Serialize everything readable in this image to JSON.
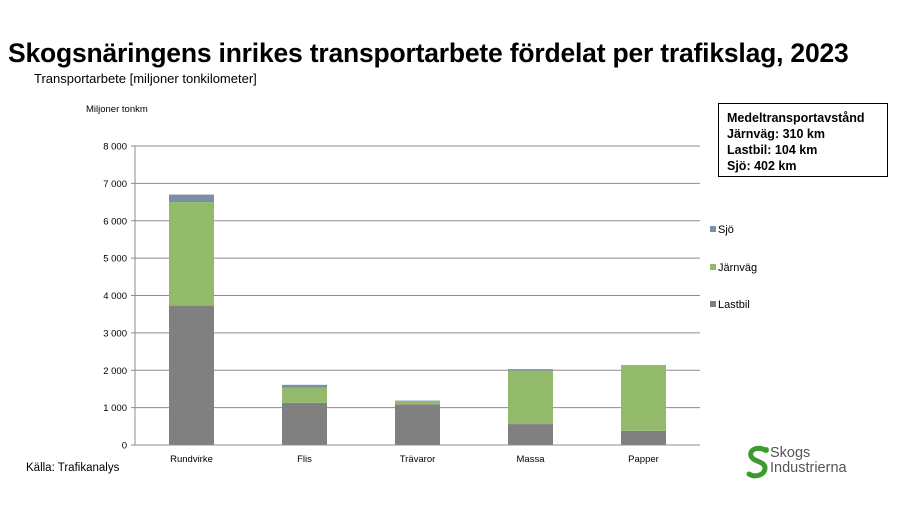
{
  "title": "Skogsnäringens inrikes transportarbete fördelat per trafikslag, 2023",
  "subtitle": "Transportarbete [miljoner tonkilometer]",
  "source": "Källa: Trafikanalys",
  "infobox": {
    "heading": "Medeltransportavstånd",
    "lines": [
      "Järnväg: 310 km",
      "Lastbil: 104 km",
      "Sjö: 402 km"
    ]
  },
  "logo": {
    "line1": "Skogs",
    "line2": "Industrierna",
    "icon": "s-swirl-logo-icon",
    "color": "#3c9a2e"
  },
  "chart_data": {
    "type": "bar",
    "stacked": true,
    "ylabel": "Miljoner tonkm",
    "ylim": [
      0,
      8000
    ],
    "yticks": [
      0,
      1000,
      2000,
      3000,
      4000,
      5000,
      6000,
      7000,
      8000
    ],
    "ytick_labels": [
      "0",
      "1 000",
      "2 000",
      "3 000",
      "4 000",
      "5 000",
      "6 000",
      "7 000",
      "8 000"
    ],
    "categories": [
      "Rundvirke",
      "Flis",
      "Trävaror",
      "Massa",
      "Papper"
    ],
    "series": [
      {
        "name": "Lastbil",
        "color": "#808080",
        "values": [
          3730,
          1130,
          1090,
          560,
          380
        ]
      },
      {
        "name": "Järnväg",
        "color": "#93b96b",
        "values": [
          2770,
          400,
          90,
          1430,
          1750
        ]
      },
      {
        "name": "Sjö",
        "color": "#7b8fa6",
        "values": [
          200,
          80,
          10,
          40,
          10
        ]
      }
    ],
    "legend_position": "right",
    "grid": true
  }
}
